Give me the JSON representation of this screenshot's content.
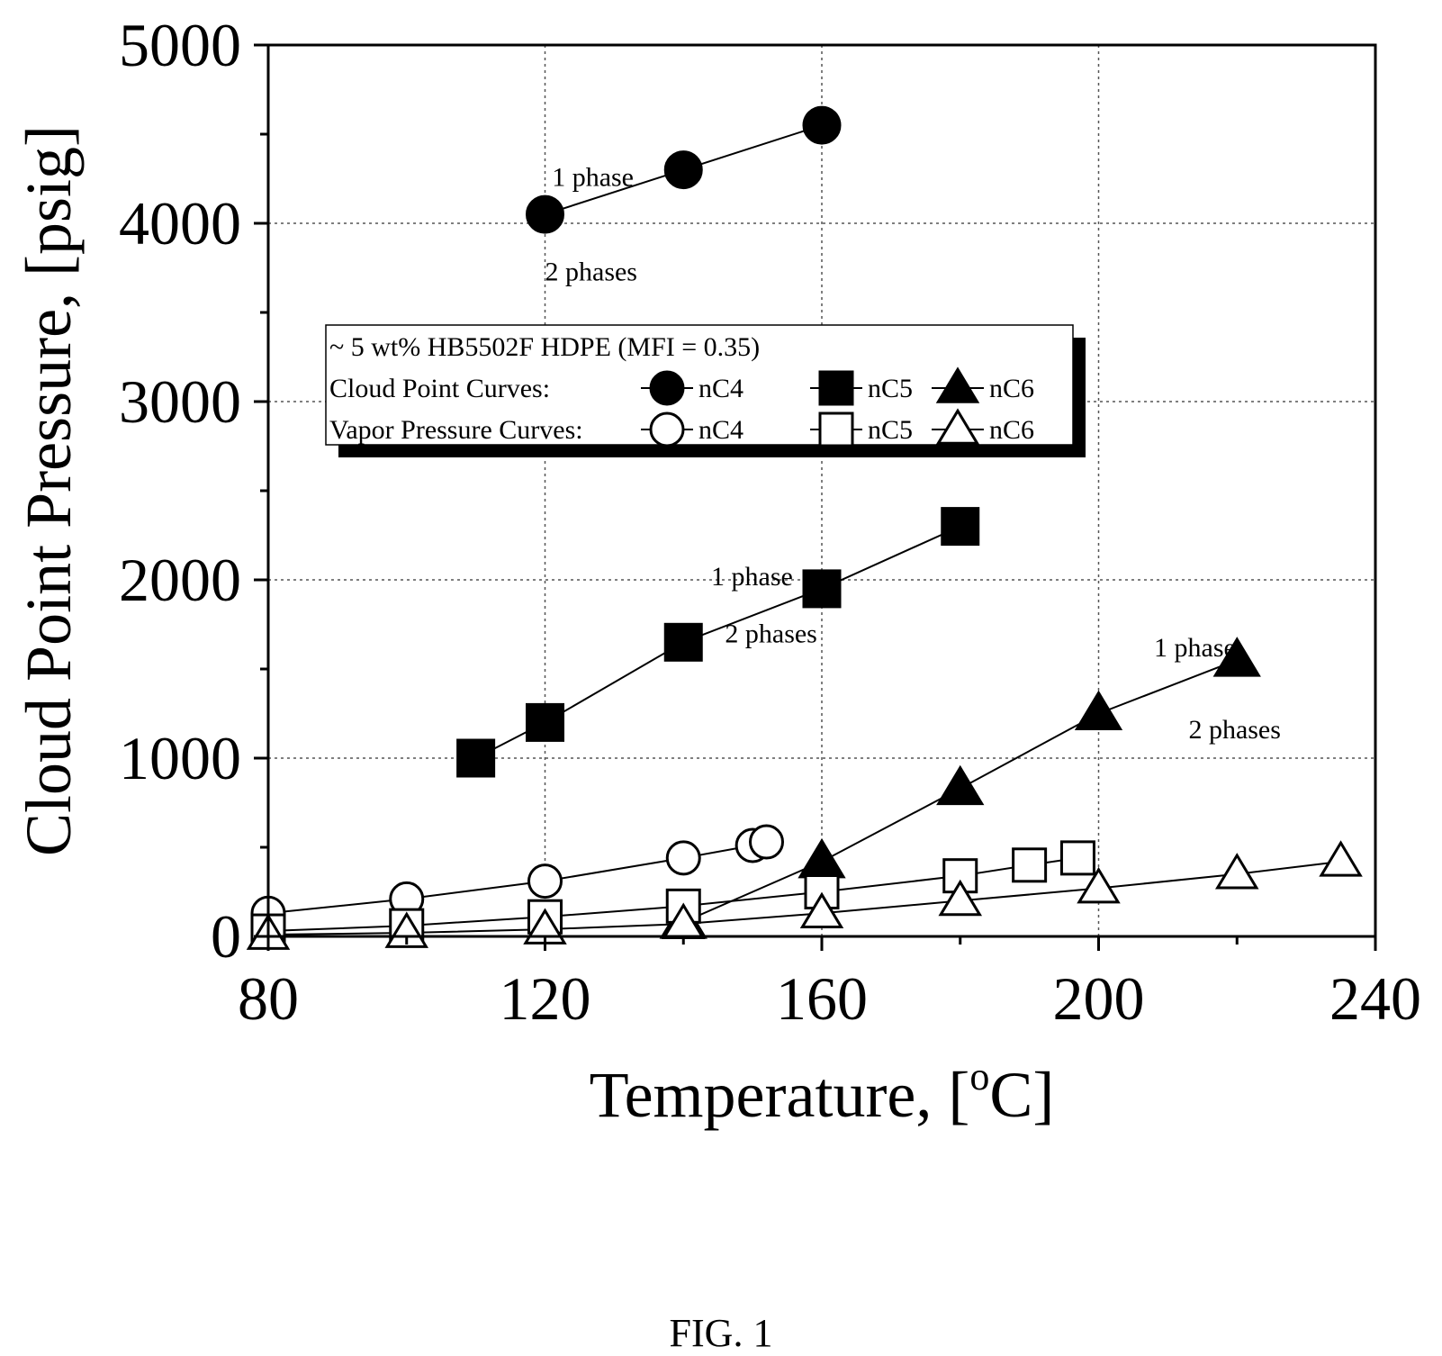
{
  "chart_data": {
    "type": "scatter",
    "xlabel": "Temperature, [",
    "xlabel_sup": "o",
    "xlabel_end": "C]",
    "ylabel": "Cloud Point Pressure, [psig]",
    "xlim": [
      80,
      240
    ],
    "ylim": [
      0,
      5000
    ],
    "x_ticks": [
      80,
      120,
      160,
      200,
      240
    ],
    "y_ticks": [
      0,
      1000,
      2000,
      3000,
      4000,
      5000
    ],
    "grid": true,
    "legend_placement": "upper-middle",
    "legend_title": "~ 5 wt% HB5502F HDPE (MFI = 0.35)",
    "legend_rows": [
      {
        "label": "Cloud Point Curves:",
        "fill": "filled",
        "entries": [
          "nC4",
          "nC5",
          "nC6"
        ]
      },
      {
        "label": "Vapor Pressure Curves:",
        "fill": "open",
        "entries": [
          "nC4",
          "nC5",
          "nC6"
        ]
      }
    ],
    "series": [
      {
        "name": "nC4",
        "group": "Cloud Point Curves",
        "marker": "circle",
        "fill": "filled",
        "x": [
          120,
          140,
          160
        ],
        "y": [
          4050,
          4300,
          4550
        ]
      },
      {
        "name": "nC5",
        "group": "Cloud Point Curves",
        "marker": "square",
        "fill": "filled",
        "x": [
          110,
          120,
          140,
          160,
          180
        ],
        "y": [
          1000,
          1200,
          1650,
          1950,
          2300
        ]
      },
      {
        "name": "nC6",
        "group": "Cloud Point Curves",
        "marker": "triangle",
        "fill": "filled",
        "x": [
          140,
          160,
          180,
          200,
          220
        ],
        "y": [
          80,
          420,
          830,
          1250,
          1550
        ]
      },
      {
        "name": "nC4",
        "group": "Vapor Pressure Curves",
        "marker": "circle",
        "fill": "open",
        "x": [
          80,
          100,
          120,
          140,
          150,
          152
        ],
        "y": [
          130,
          210,
          310,
          440,
          510,
          530
        ]
      },
      {
        "name": "nC5",
        "group": "Vapor Pressure Curves",
        "marker": "square",
        "fill": "open",
        "x": [
          80,
          100,
          120,
          140,
          160,
          180,
          190,
          197
        ],
        "y": [
          30,
          60,
          110,
          170,
          250,
          340,
          400,
          440
        ]
      },
      {
        "name": "nC6",
        "group": "Vapor Pressure Curves",
        "marker": "triangle",
        "fill": "open",
        "x": [
          80,
          100,
          120,
          140,
          160,
          180,
          200,
          220,
          235
        ],
        "y": [
          10,
          20,
          40,
          70,
          130,
          200,
          270,
          350,
          420
        ]
      }
    ],
    "annotations": [
      {
        "text": "1 phase",
        "x": 121,
        "y": 4210
      },
      {
        "text": "2 phases",
        "x": 120,
        "y": 3680
      },
      {
        "text": "1 phase",
        "x": 144,
        "y": 1970
      },
      {
        "text": "2 phases",
        "x": 146,
        "y": 1650
      },
      {
        "text": "1 phase",
        "x": 208,
        "y": 1570
      },
      {
        "text": "2 phases",
        "x": 213,
        "y": 1110
      }
    ]
  },
  "caption": "FIG. 1"
}
